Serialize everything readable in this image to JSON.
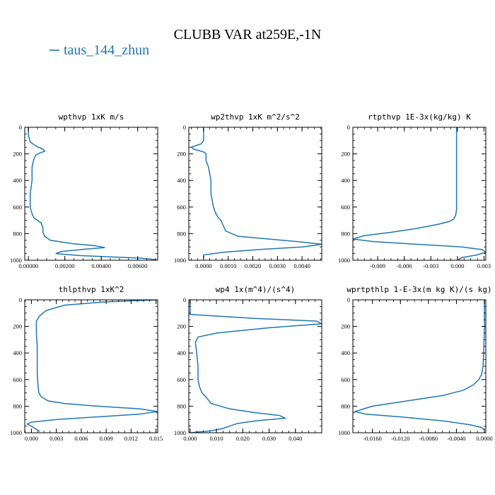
{
  "figure": {
    "title": "CLUBB VAR at259E,-1N",
    "legend_label": "taus_144_zhun",
    "line_color": "#1f77b4"
  },
  "chart_data": [
    {
      "type": "line",
      "title": "wpthvp   1xK m/s",
      "xlim": [
        -0.0002,
        0.0071
      ],
      "ylim": [
        1000,
        0
      ],
      "xticks": [
        "0.00000",
        "0.00200",
        "0.00400",
        "0.00600"
      ],
      "xtick_values": [
        0,
        0.002,
        0.004,
        0.006
      ],
      "yticks": [
        "0",
        "200",
        "400",
        "600",
        "800",
        "1000"
      ],
      "ytick_values": [
        0,
        200,
        400,
        600,
        800,
        1000
      ],
      "series": [
        {
          "x": [
            0.0,
            0.0,
            0.0001,
            0.0004,
            0.0008,
            0.0009,
            0.0006,
            0.0004,
            0.0003,
            0.0002,
            0.0002,
            0.0001,
            0.0001,
            0.0002,
            0.0003,
            0.0005,
            0.0007,
            0.0008,
            0.0008,
            0.0009,
            0.0012,
            0.0024,
            0.0036,
            0.0042,
            0.003,
            0.0018,
            0.0015,
            0.0028,
            0.0045,
            0.0062,
            0.007
          ],
          "y": [
            0,
            60,
            110,
            140,
            165,
            180,
            195,
            210,
            240,
            300,
            400,
            500,
            600,
            650,
            680,
            700,
            720,
            760,
            790,
            820,
            850,
            875,
            890,
            905,
            918,
            935,
            950,
            965,
            975,
            985,
            995
          ]
        }
      ]
    },
    {
      "type": "line",
      "title": "wp2thvp   1xK m^2/s^2",
      "xlim": [
        -0.0006,
        0.0048
      ],
      "ylim": [
        1000,
        0
      ],
      "xticks": [
        "0.0000",
        "0.0010",
        "0.0020",
        "0.0030",
        "0.0040"
      ],
      "xtick_values": [
        0,
        0.001,
        0.002,
        0.003,
        0.004
      ],
      "yticks": [
        "0",
        "200",
        "400",
        "600",
        "800",
        "1000"
      ],
      "ytick_values": [
        0,
        200,
        400,
        600,
        800,
        1000
      ],
      "series": [
        {
          "x": [
            0.0,
            0.0,
            -0.0001,
            -0.0005,
            -0.0004,
            0.0,
            0.0001,
            0.0001,
            0.0002,
            0.0003,
            0.0003,
            0.0004,
            0.0005,
            0.0006,
            0.0007,
            0.0008,
            0.0009,
            0.0014,
            0.0026,
            0.0038,
            0.0048,
            0.004,
            0.0022,
            0.0008,
            0.0,
            0.0
          ],
          "y": [
            0,
            100,
            125,
            150,
            165,
            185,
            200,
            250,
            300,
            400,
            500,
            600,
            650,
            680,
            700,
            740,
            780,
            820,
            840,
            860,
            880,
            900,
            920,
            940,
            960,
            985
          ]
        }
      ]
    },
    {
      "type": "line",
      "title": "rtpthvp   1E-3x(kg/kg) K",
      "xlim": [
        -0.0118,
        0.0032
      ],
      "ylim": [
        1000,
        0
      ],
      "xticks": [
        "-0.009",
        "-0.006",
        "-0.003",
        "0.000",
        "0.003"
      ],
      "xtick_values": [
        -0.009,
        -0.006,
        -0.003,
        0,
        0.003
      ],
      "yticks": [
        "0",
        "200",
        "400",
        "600",
        "800",
        "1000"
      ],
      "ytick_values": [
        0,
        200,
        400,
        600,
        800,
        1000
      ],
      "series": [
        {
          "x": [
            -0.0001,
            -0.0001,
            -0.0001,
            -0.0001,
            -0.0001,
            -0.0002,
            -0.0004,
            -0.001,
            -0.0022,
            -0.0045,
            -0.0075,
            -0.0105,
            -0.0118,
            -0.0095,
            -0.0045,
            0.0005,
            0.0028,
            0.0032,
            0.0022,
            0.0005,
            0.0
          ],
          "y": [
            0,
            200,
            400,
            550,
            620,
            660,
            690,
            710,
            730,
            760,
            790,
            815,
            840,
            860,
            880,
            900,
            920,
            940,
            960,
            980,
            1000
          ]
        }
      ]
    },
    {
      "type": "line",
      "title": "thlpthvp   1xK^2",
      "xlim": [
        -0.0008,
        0.0152
      ],
      "ylim": [
        1000,
        0
      ],
      "xticks": [
        "0.000",
        "0.003",
        "0.006",
        "0.009",
        "0.012",
        "0.015"
      ],
      "xtick_values": [
        0,
        0.003,
        0.006,
        0.009,
        0.012,
        0.015
      ],
      "yticks": [
        "0",
        "200",
        "400",
        "600",
        "800",
        "1000"
      ],
      "ytick_values": [
        0,
        200,
        400,
        600,
        800,
        1000
      ],
      "series": [
        {
          "x": [
            0.0152,
            0.013,
            0.009,
            0.004,
            0.0018,
            0.001,
            0.0006,
            0.0006,
            0.0007,
            0.0007,
            0.0007,
            0.0008,
            0.0009,
            0.0012,
            0.002,
            0.004,
            0.008,
            0.013,
            0.0152,
            0.013,
            0.008,
            0.003,
            0.0,
            -0.0005,
            0.0,
            0.0005,
            0.001
          ],
          "y": [
            0,
            5,
            15,
            40,
            80,
            120,
            160,
            250,
            350,
            450,
            550,
            650,
            700,
            730,
            760,
            780,
            800,
            820,
            840,
            860,
            880,
            900,
            920,
            935,
            950,
            970,
            990
          ]
        }
      ]
    },
    {
      "type": "line",
      "title": "wp4   1x(m^4)/(s^4)",
      "xlim": [
        -0.0005,
        0.05
      ],
      "ylim": [
        1000,
        0
      ],
      "xticks": [
        "0.000",
        "0.010",
        "0.020",
        "0.030",
        "0.040"
      ],
      "xtick_values": [
        0,
        0.01,
        0.02,
        0.03,
        0.04
      ],
      "yticks": [
        "0",
        "200",
        "400",
        "600",
        "800",
        "1000"
      ],
      "ytick_values": [
        0,
        200,
        400,
        600,
        800,
        1000
      ],
      "series": [
        {
          "x": [
            0.0,
            0.0,
            0.0,
            0.025,
            0.048,
            0.05,
            0.03,
            0.01,
            0.003,
            0.002,
            0.0025,
            0.003,
            0.003,
            0.0035,
            0.0045,
            0.006,
            0.008,
            0.015,
            0.025,
            0.034,
            0.036,
            0.025,
            0.018,
            0.015,
            0.012,
            0.008,
            0.0
          ],
          "y": [
            0,
            60,
            110,
            140,
            160,
            180,
            210,
            250,
            280,
            320,
            400,
            500,
            600,
            650,
            700,
            730,
            780,
            820,
            850,
            870,
            890,
            910,
            930,
            950,
            970,
            985,
            1000
          ]
        }
      ]
    },
    {
      "type": "line",
      "title": "wprtpthlp   1-E-3x(m kg K)/(s kg)",
      "xlim": [
        -0.0188,
        0.0002
      ],
      "ylim": [
        1000,
        0
      ],
      "xticks": [
        "-0.0160",
        "-0.0120",
        "-0.0080",
        "-0.0040",
        "0.0000"
      ],
      "xtick_values": [
        -0.016,
        -0.012,
        -0.008,
        -0.004,
        0
      ],
      "yticks": [
        "0",
        "200",
        "400",
        "600",
        "800",
        "1000"
      ],
      "ytick_values": [
        0,
        200,
        400,
        600,
        800,
        1000
      ],
      "series": [
        {
          "x": [
            0.0,
            0.0,
            -0.0001,
            -0.0002,
            -0.0004,
            -0.0008,
            -0.0016,
            -0.003,
            -0.006,
            -0.011,
            -0.016,
            -0.0185,
            -0.017,
            -0.012,
            -0.006,
            -0.002,
            -0.0004,
            0.0
          ],
          "y": [
            0,
            200,
            400,
            500,
            560,
            600,
            640,
            680,
            720,
            760,
            800,
            840,
            860,
            880,
            910,
            940,
            960,
            980
          ]
        }
      ]
    }
  ]
}
